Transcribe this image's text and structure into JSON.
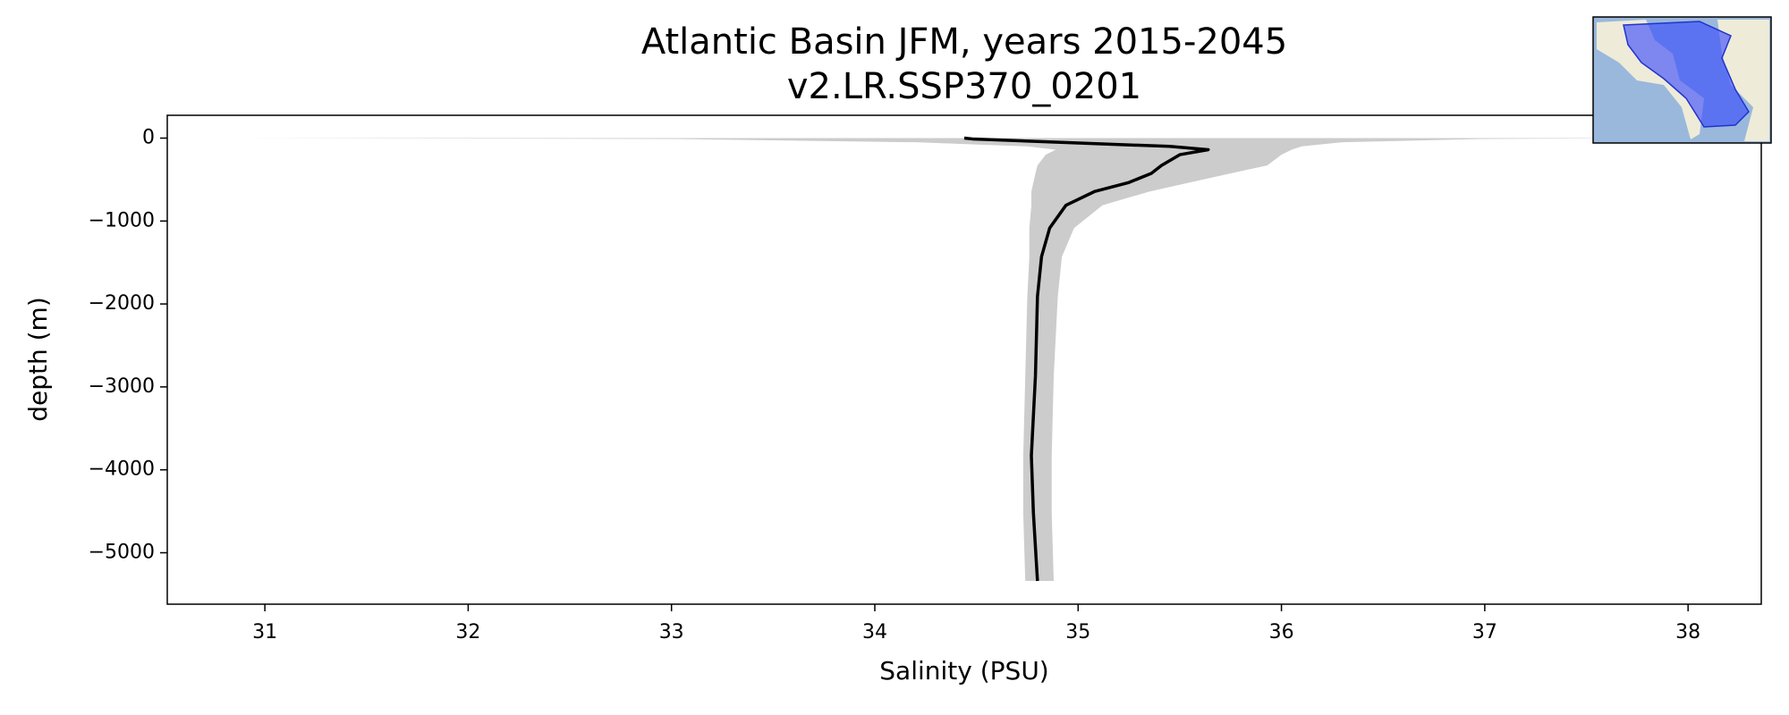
{
  "chart_data": {
    "type": "line",
    "title": "Atlantic Basin JFM, years 2015-2045",
    "subtitle": "v2.LR.SSP370_0201",
    "xlabel": "Salinity (PSU)",
    "ylabel": "depth (m)",
    "depth": [
      0,
      -10,
      -50,
      -100,
      -140,
      -200,
      -330,
      -425,
      -535,
      -645,
      -810,
      -1085,
      -1430,
      -1910,
      -2870,
      -3830,
      -4520,
      -5340
    ],
    "series": [
      {
        "color": "#000000",
        "values": [
          34.44,
          34.48,
          34.9,
          35.45,
          35.64,
          35.5,
          35.41,
          35.36,
          35.25,
          35.08,
          34.94,
          34.86,
          34.82,
          34.8,
          34.79,
          34.77,
          34.78,
          34.8
        ]
      }
    ],
    "band": {
      "color": "#cccccc",
      "lower": [
        30.88,
        33.0,
        34.2,
        34.75,
        34.89,
        34.84,
        34.8,
        34.79,
        34.78,
        34.77,
        34.77,
        34.76,
        34.76,
        34.75,
        34.74,
        34.73,
        34.73,
        34.74
      ],
      "upper": [
        37.9,
        37.0,
        36.3,
        36.1,
        36.05,
        36.0,
        35.93,
        35.75,
        35.55,
        35.35,
        35.12,
        34.98,
        34.92,
        34.9,
        34.88,
        34.87,
        34.87,
        34.88
      ]
    },
    "xlim": [
      30.52,
      38.36
    ],
    "ylim": [
      -5620,
      275
    ],
    "xticks": [
      31,
      32,
      33,
      34,
      35,
      36,
      37,
      38
    ],
    "yticks": [
      0,
      {
        "value": -1000,
        "label": "−1000"
      },
      {
        "value": -2000,
        "label": "−2000"
      },
      {
        "value": -3000,
        "label": "−3000"
      },
      {
        "value": -4000,
        "label": "−4000"
      },
      {
        "value": -5000,
        "label": "−5000"
      }
    ]
  }
}
